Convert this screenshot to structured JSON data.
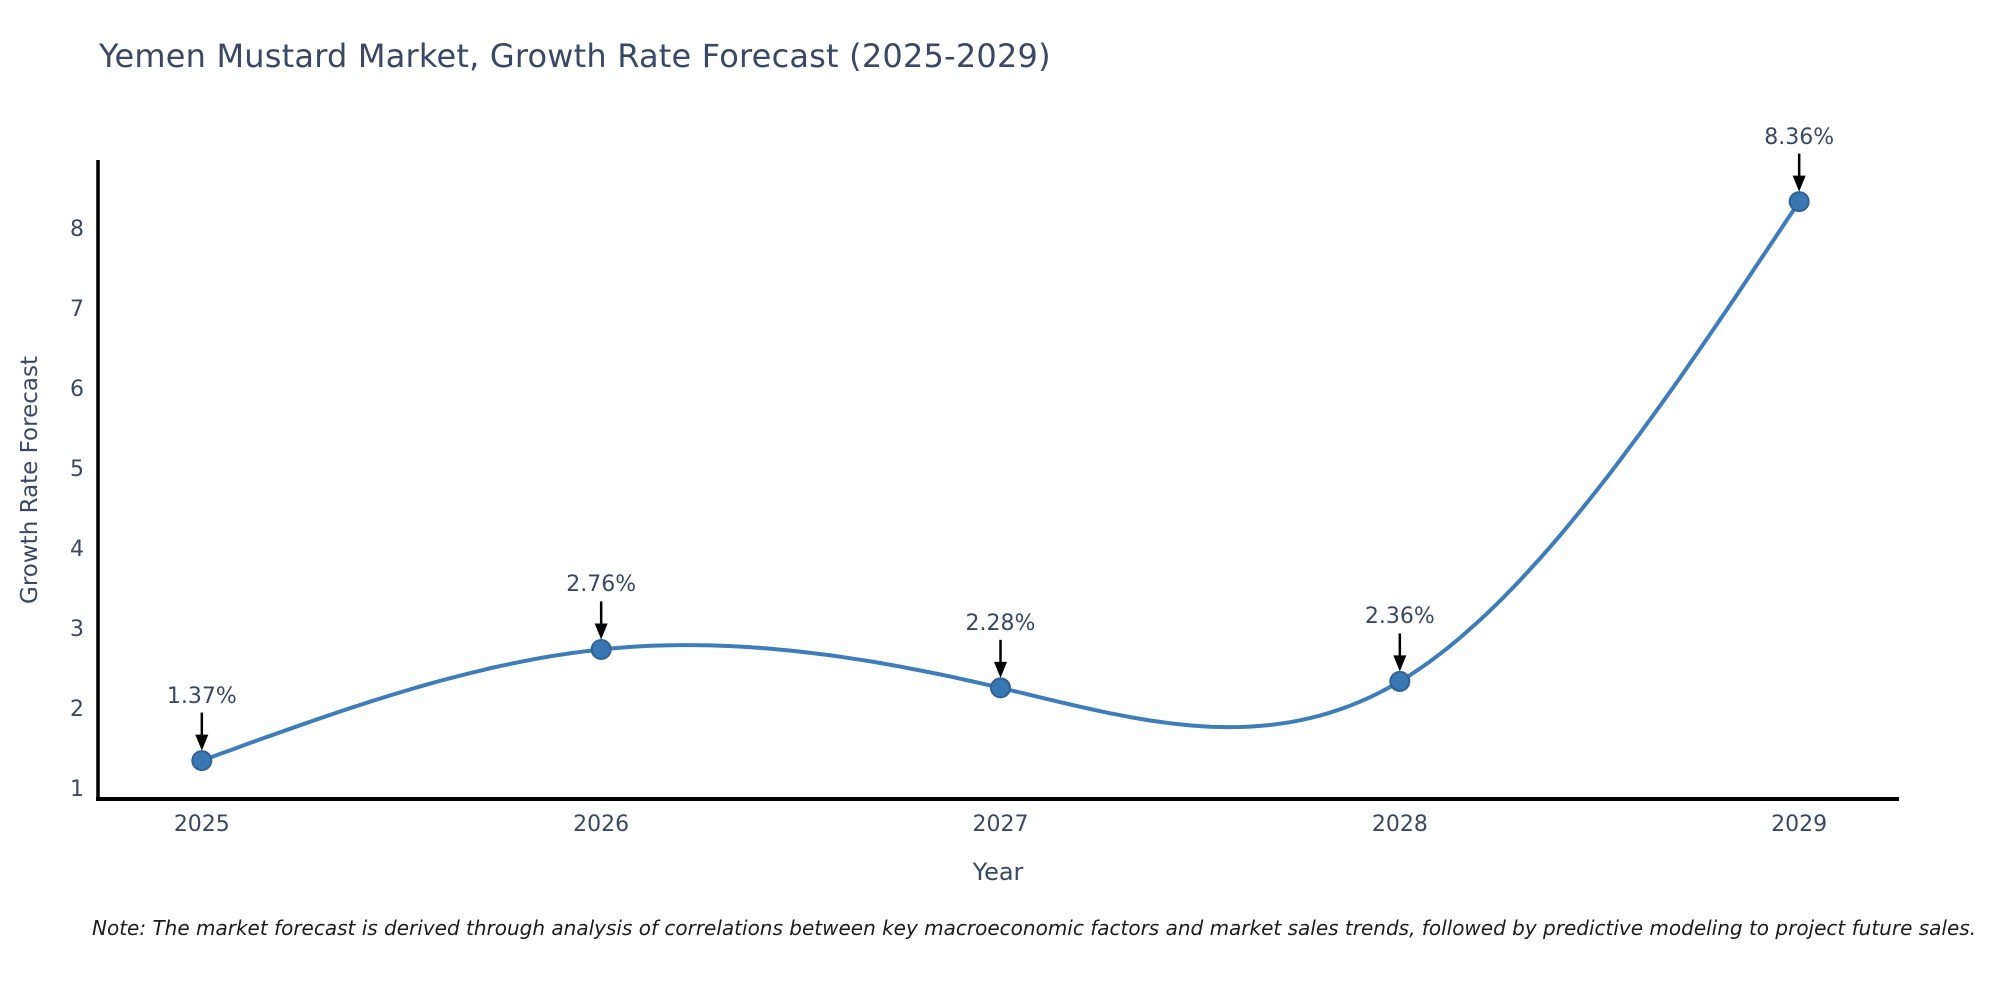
{
  "chart_data": {
    "type": "line",
    "title": "Yemen Mustard Market, Growth Rate Forecast (2025-2029)",
    "xlabel": "Year",
    "ylabel": "Growth Rate Forecast",
    "x": [
      2025,
      2026,
      2027,
      2028,
      2029
    ],
    "categories": [
      "2025",
      "2026",
      "2027",
      "2028",
      "2029"
    ],
    "values": [
      1.37,
      2.76,
      2.28,
      2.36,
      8.36
    ],
    "point_labels": [
      "1.37%",
      "2.76%",
      "2.28%",
      "2.36%",
      "8.36%"
    ],
    "yticks": [
      1,
      2,
      3,
      4,
      5,
      6,
      7,
      8
    ],
    "xlim": [
      2024.74,
      2029.25
    ],
    "ylim": [
      0.89,
      8.88
    ],
    "grid": false,
    "legend": "none",
    "line_shape": "natural-spline",
    "annotations_have_arrows": true,
    "note": "Note: The market forecast is derived through analysis of correlations between key macroeconomic factors and market sales trends, followed by predictive modeling to project future sales.",
    "colors": {
      "line": "#3d7db9",
      "marker_fill": "#3a77b2",
      "marker_edge": "#2e6398",
      "axis": "#000000",
      "text": "#3b4766",
      "note_text": "#1c1c1c",
      "arrow": "#000000",
      "background": "#ffffff"
    }
  }
}
